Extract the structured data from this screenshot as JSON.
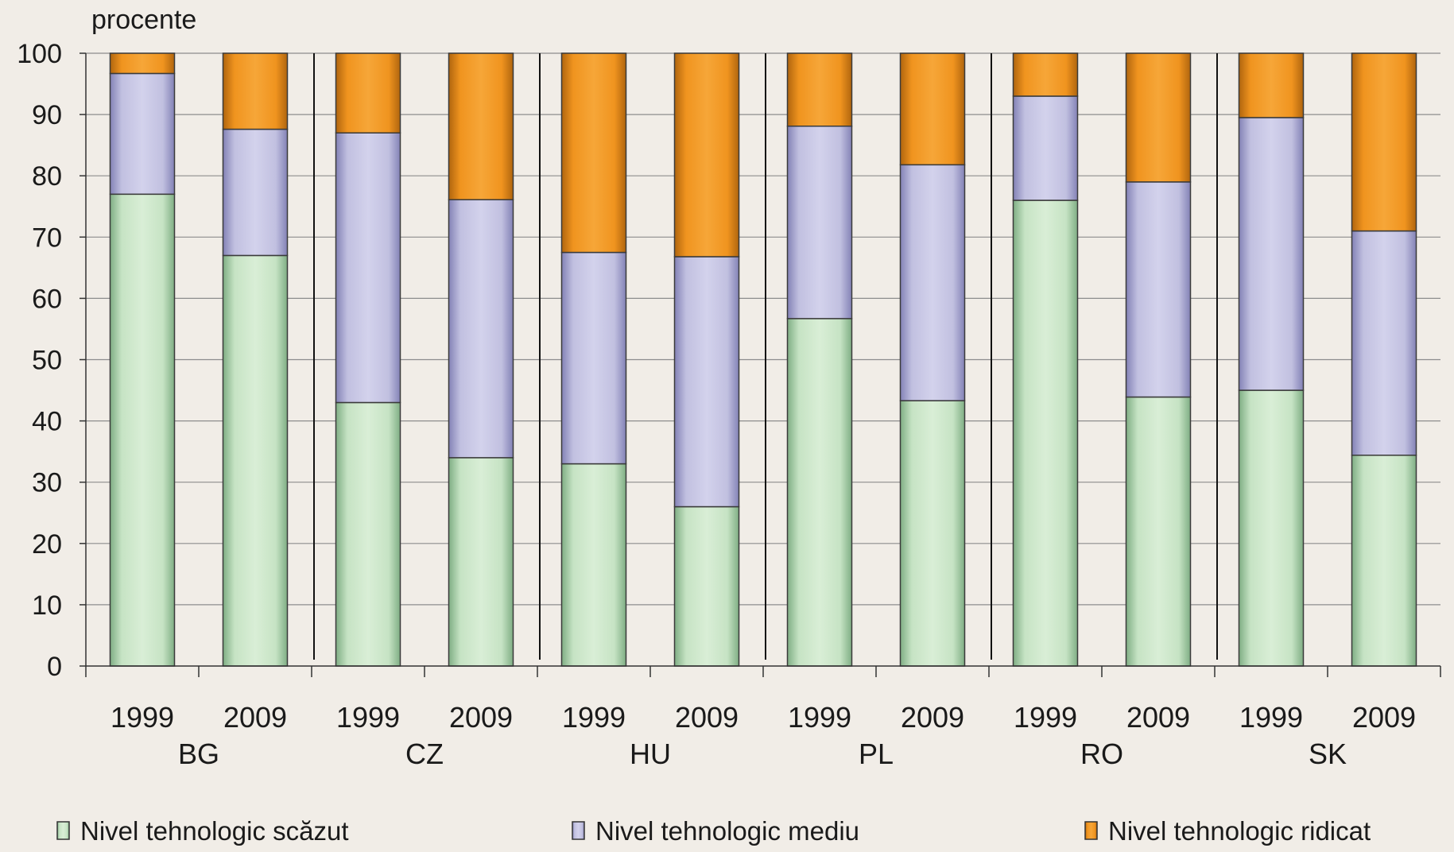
{
  "chart_data": {
    "type": "bar",
    "stacked": true,
    "ylabel": "procente",
    "ylim": [
      0,
      100
    ],
    "yticks": [
      0,
      10,
      20,
      30,
      40,
      50,
      60,
      70,
      80,
      90,
      100
    ],
    "grid": true,
    "legend_position": "bottom",
    "groups": [
      "BG",
      "CZ",
      "HU",
      "PL",
      "RO",
      "SK"
    ],
    "categories": [
      "1999",
      "2009",
      "1999",
      "2009",
      "1999",
      "2009",
      "1999",
      "2009",
      "1999",
      "2009",
      "1999",
      "2009"
    ],
    "series": [
      {
        "name": "Nivel tehnologic scăzut",
        "color": "#c6e3c4",
        "values": [
          77,
          67,
          43,
          34,
          33,
          26,
          56.7,
          43.3,
          76,
          43.9,
          45,
          34.4
        ]
      },
      {
        "name": "Nivel tehnologic mediu",
        "color": "#c1c0e0",
        "values": [
          19.7,
          20.6,
          44,
          42.1,
          34.5,
          40.8,
          31.4,
          38.5,
          17,
          35.1,
          44.5,
          36.6
        ]
      },
      {
        "name": "Nivel tehnologic ridicat",
        "color": "#f0941f",
        "values": [
          3.3,
          12.4,
          13,
          23.9,
          32.5,
          33.2,
          11.9,
          18.2,
          7,
          21,
          10.5,
          29
        ]
      }
    ]
  }
}
